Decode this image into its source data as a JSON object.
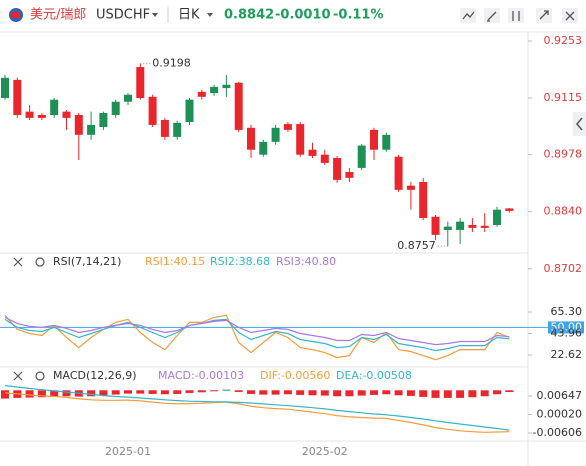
{
  "header": {
    "name": "美元/瑞郎",
    "symbol": "USDCHF",
    "period": "日K",
    "price": "0.8842",
    "change": "-0.0010",
    "change_pct": "-0.11%"
  },
  "chart_data": [
    {
      "type": "candlestick",
      "up_color": "#1e8f55",
      "down_color": "#e8262b",
      "axis_label_color": "#e03b3b",
      "mark_extremes": true,
      "categories": [
        null,
        null,
        null,
        null,
        null,
        null,
        null,
        null,
        null,
        null,
        "2025-01",
        null,
        null,
        null,
        null,
        null,
        null,
        null,
        null,
        null,
        null,
        null,
        null,
        null,
        null,
        null,
        "2025-02",
        null,
        null,
        null,
        null,
        null,
        null,
        null,
        null,
        null,
        null,
        null,
        null,
        null,
        null,
        null
      ],
      "open": [
        0.9115,
        0.9159,
        0.9082,
        0.9074,
        0.9074,
        0.9082,
        0.9074,
        0.9026,
        0.9045,
        0.9074,
        0.9106,
        0.919,
        0.9118,
        0.9062,
        0.9021,
        0.9057,
        0.913,
        0.9127,
        0.9139,
        0.9152,
        0.9043,
        0.8978,
        0.9009,
        0.9052,
        0.9052,
        0.899,
        0.8978,
        0.897,
        0.8936,
        0.8946,
        0.9038,
        0.899,
        0.8973,
        0.8903,
        0.8912,
        0.8828,
        0.8796,
        0.8796,
        0.8808,
        0.8806,
        0.8808,
        0.8848
      ],
      "high": [
        0.9171,
        0.9164,
        0.9098,
        0.9079,
        0.9115,
        0.9086,
        0.9079,
        0.9082,
        0.9082,
        0.9111,
        0.9127,
        0.9198,
        0.9123,
        0.9067,
        0.906,
        0.9115,
        0.9135,
        0.9147,
        0.9171,
        0.9154,
        0.905,
        0.9014,
        0.905,
        0.9057,
        0.9057,
        0.9007,
        0.899,
        0.8975,
        0.8946,
        0.9004,
        0.9043,
        0.9031,
        0.8978,
        0.8912,
        0.8922,
        0.8832,
        0.8816,
        0.8825,
        0.8825,
        0.8837,
        0.8852,
        0.8849
      ],
      "low": [
        0.9111,
        0.9067,
        0.9062,
        0.9062,
        0.9067,
        0.9038,
        0.8965,
        0.9014,
        0.9038,
        0.9067,
        0.9098,
        0.9111,
        0.9045,
        0.9014,
        0.9014,
        0.905,
        0.9111,
        0.912,
        0.9118,
        0.9033,
        0.897,
        0.8973,
        0.9002,
        0.9033,
        0.8973,
        0.897,
        0.8953,
        0.891,
        0.8912,
        0.8941,
        0.8965,
        0.8985,
        0.8888,
        0.8845,
        0.882,
        0.8772,
        0.8757,
        0.8762,
        0.8791,
        0.8791,
        0.8804,
        0.8838
      ],
      "close": [
        0.9164,
        0.9074,
        0.9067,
        0.9067,
        0.9111,
        0.9067,
        0.9026,
        0.905,
        0.9079,
        0.9106,
        0.9123,
        0.9115,
        0.905,
        0.9021,
        0.9055,
        0.9111,
        0.9118,
        0.9142,
        0.9147,
        0.9038,
        0.899,
        0.9009,
        0.9043,
        0.9038,
        0.8978,
        0.8975,
        0.8958,
        0.8917,
        0.8922,
        0.9,
        0.899,
        0.9026,
        0.8893,
        0.8893,
        0.8825,
        0.8784,
        0.8804,
        0.8816,
        0.8801,
        0.8801,
        0.8845,
        0.8842
      ],
      "ylim": [
        0.8687,
        0.934
      ],
      "yticks": [
        0.9253,
        0.9115,
        0.8978,
        {
          "value": 0.884,
          "label": "0.8840"
        },
        0.8702
      ]
    },
    {
      "type": "line",
      "title": "RSI(7,14,21)",
      "series": [
        {
          "name": "RSI1:40.15",
          "color": "#f39c3c",
          "values": [
            62,
            48,
            44,
            42,
            52,
            40,
            30,
            40,
            48,
            55,
            58,
            45,
            35,
            28,
            42,
            55,
            55,
            60,
            62,
            35,
            25,
            35,
            45,
            40,
            30,
            28,
            25,
            20,
            22,
            40,
            35,
            45,
            28,
            26,
            22,
            18,
            22,
            28,
            28,
            28,
            45,
            40.15
          ]
        },
        {
          "name": "RSI2:38.68",
          "color": "#35b5c9",
          "values": [
            58,
            50,
            47,
            46,
            50,
            45,
            40,
            44,
            48,
            52,
            55,
            50,
            45,
            40,
            45,
            52,
            54,
            57,
            58,
            45,
            38,
            42,
            46,
            44,
            38,
            36,
            34,
            30,
            31,
            40,
            38,
            43,
            34,
            32,
            30,
            27,
            29,
            32,
            32,
            32,
            40,
            38.68
          ]
        },
        {
          "name": "RSI3:40.80",
          "color": "#a779e0",
          "values": [
            60,
            54,
            51,
            50,
            52,
            49,
            45,
            47,
            50,
            52,
            54,
            52,
            48,
            45,
            47,
            52,
            54,
            56,
            57,
            50,
            45,
            47,
            49,
            48,
            44,
            42,
            40,
            37,
            37,
            43,
            42,
            45,
            39,
            37,
            35,
            33,
            34,
            36,
            36,
            36,
            42,
            40.8
          ]
        }
      ],
      "ylim": [
        11.7,
        97.1
      ],
      "yticks": [
        {
          "value": 65.3,
          "label": "65.30"
        },
        43.96,
        22.62
      ],
      "reference_line": {
        "value": 50,
        "label": "50.00",
        "color": "#3fa3e6"
      }
    },
    {
      "type": "combo",
      "title": "MACD(12,26,9)",
      "series": [
        {
          "name": "MACD:-0.00103",
          "type": "bar",
          "axis": "y2",
          "color": "#a779e0",
          "up_color": "#1e9e5a",
          "down_color": "#e8262b",
          "values": [
            -0.005,
            -0.0046,
            -0.0044,
            -0.0042,
            -0.0038,
            -0.0036,
            -0.0038,
            -0.0036,
            -0.0032,
            -0.0026,
            -0.002,
            -0.002,
            -0.0022,
            -0.0024,
            -0.0022,
            -0.0016,
            -0.0012,
            -0.0006,
            0.0004,
            -0.001,
            -0.0022,
            -0.0026,
            -0.0026,
            -0.0024,
            -0.0028,
            -0.003,
            -0.0032,
            -0.0036,
            -0.0036,
            -0.0032,
            -0.0028,
            -0.0024,
            -0.003,
            -0.0034,
            -0.004,
            -0.0046,
            -0.0046,
            -0.0046,
            -0.0042,
            -0.0036,
            -0.0024,
            -0.00103
          ]
        },
        {
          "name": "DIF:-0.00560",
          "type": "line",
          "color": "#f39c3c",
          "values": [
            0.0075,
            0.0072,
            0.0068,
            0.0065,
            0.0063,
            0.006,
            0.0055,
            0.0052,
            0.005,
            0.005,
            0.0051,
            0.0048,
            0.0044,
            0.004,
            0.0038,
            0.0039,
            0.004,
            0.0042,
            0.0044,
            0.0038,
            0.003,
            0.0025,
            0.0022,
            0.002,
            0.0015,
            0.001,
            0.0005,
            -0.0002,
            -0.0006,
            -0.0008,
            -0.001,
            -0.0011,
            -0.0018,
            -0.0025,
            -0.0033,
            -0.0042,
            -0.0048,
            -0.0053,
            -0.0056,
            -0.0058,
            -0.0057,
            -0.0056
          ]
        },
        {
          "name": "DEA:-0.00508",
          "type": "line",
          "color": "#35b5c9",
          "values": [
            0.01,
            0.0095,
            0.009,
            0.0086,
            0.0082,
            0.0078,
            0.0074,
            0.007,
            0.0066,
            0.0063,
            0.0061,
            0.0058,
            0.0055,
            0.0052,
            0.0049,
            0.0047,
            0.0046,
            0.0045,
            0.0045,
            0.0043,
            0.0041,
            0.0038,
            0.0035,
            0.0032,
            0.0029,
            0.0025,
            0.0021,
            0.0016,
            0.0012,
            0.0008,
            0.0004,
            0.0001,
            -0.0003,
            -0.0008,
            -0.0013,
            -0.0019,
            -0.0025,
            -0.003,
            -0.0035,
            -0.004,
            -0.0045,
            -0.00508
          ]
        }
      ],
      "ylim": [
        -0.0084,
        0.0112
      ],
      "y2lim": [
        -0.03,
        0.005
      ],
      "yticks": [
        0.00647,
        {
          "value": 0.0002,
          "label": "0.00020"
        },
        -0.00606
      ]
    }
  ]
}
